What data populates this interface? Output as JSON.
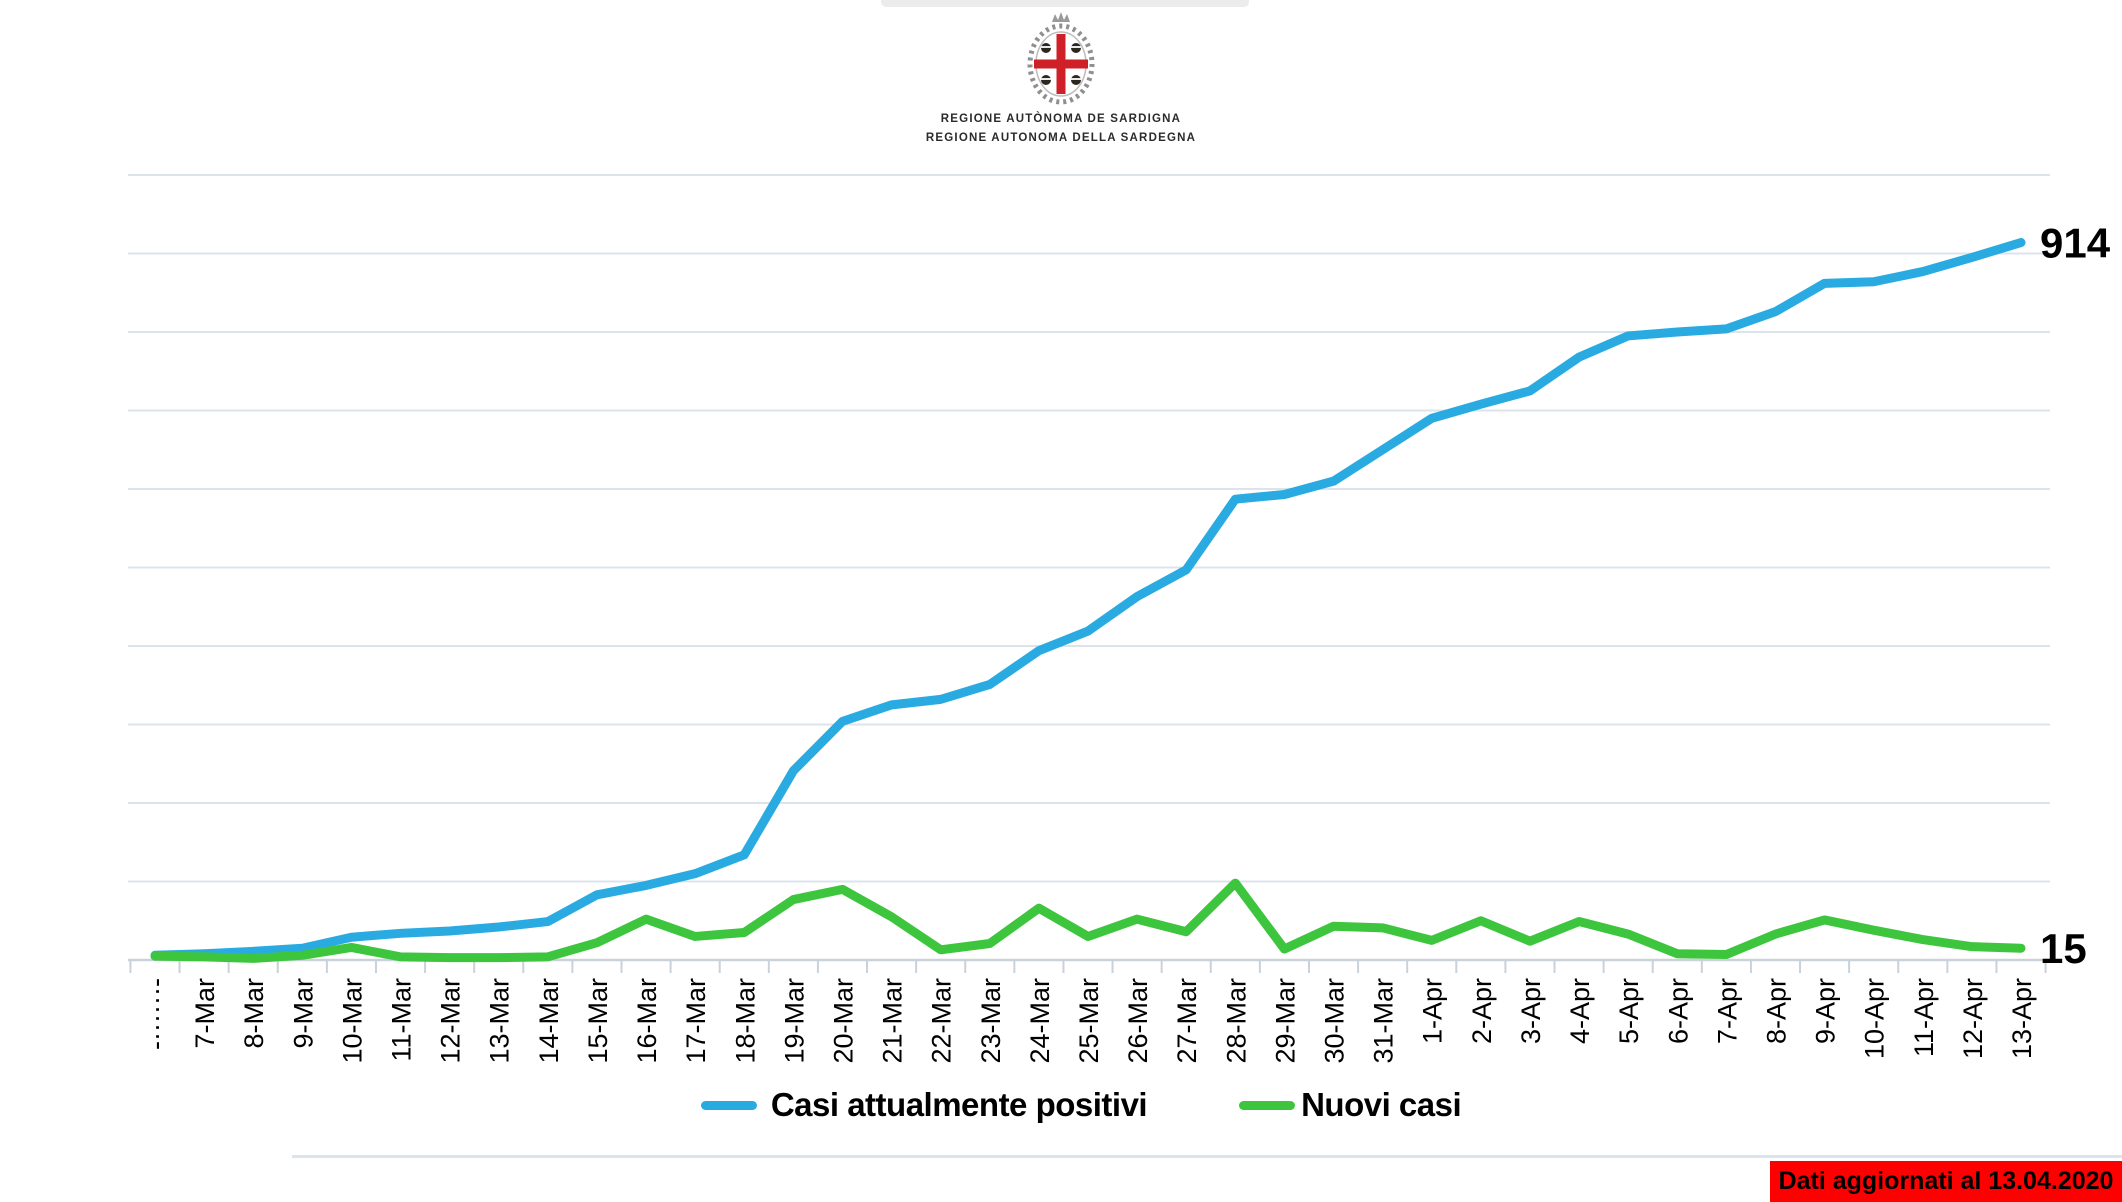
{
  "header": {
    "logo_line1": "REGIONE AUTÒNOMA DE SARDIGNA",
    "logo_line2": "REGIONE AUTONOMA DELLA SARDEGNA"
  },
  "chart_data": {
    "type": "line",
    "title": "",
    "xlabel": "",
    "ylabel": "",
    "ylim": [
      0,
      1000
    ],
    "gridline_step": 100,
    "grid": true,
    "legend_position": "bottom",
    "categories": [
      "-······-",
      "7-Mar",
      "8-Mar",
      "9-Mar",
      "10-Mar",
      "11-Mar",
      "12-Mar",
      "13-Mar",
      "14-Mar",
      "15-Mar",
      "16-Mar",
      "17-Mar",
      "18-Mar",
      "19-Mar",
      "20-Mar",
      "21-Mar",
      "22-Mar",
      "23-Mar",
      "24-Mar",
      "25-Mar",
      "26-Mar",
      "27-Mar",
      "28-Mar",
      "29-Mar",
      "30-Mar",
      "31-Mar",
      "1-Apr",
      "2-Apr",
      "3-Apr",
      "4-Apr",
      "5-Apr",
      "6-Apr",
      "7-Apr",
      "8-Apr",
      "9-Apr",
      "10-Apr",
      "11-Apr",
      "12-Apr",
      "13-Apr"
    ],
    "series": [
      {
        "name": "Casi attualmente positivi",
        "color": "#29ABE2",
        "values": [
          6,
          8,
          11,
          15,
          29,
          34,
          37,
          42,
          49,
          83,
          95,
          110,
          134,
          241,
          304,
          325,
          332,
          351,
          394,
          419,
          463,
          497,
          587,
          593,
          610,
          650,
          690,
          708,
          725,
          768,
          795,
          800,
          804,
          826,
          862,
          864,
          877,
          895,
          914
        ],
        "end_label": "914"
      },
      {
        "name": "Nuovi casi",
        "color": "#3EC53E",
        "values": [
          5,
          4,
          2,
          6,
          16,
          4,
          3,
          3,
          4,
          22,
          52,
          30,
          35,
          77,
          90,
          55,
          13,
          21,
          66,
          30,
          52,
          36,
          98,
          14,
          43,
          41,
          25,
          50,
          24,
          49,
          33,
          8,
          7,
          33,
          51,
          38,
          26,
          17,
          15
        ],
        "end_label": "15"
      }
    ],
    "colors": {
      "gridline": "#dce3eb",
      "axis": "#c9d2da",
      "tick": "#c9d2da",
      "label": "#000000"
    }
  },
  "legend": {
    "items": [
      {
        "label": "Casi attualmente positivi",
        "color": "#29ABE2"
      },
      {
        "label": "Nuovi casi",
        "color": "#3EC53E"
      }
    ]
  },
  "footer": {
    "badge_text": "Dati aggiornati al 13.04.2020",
    "badge_bg": "#FF0000"
  }
}
